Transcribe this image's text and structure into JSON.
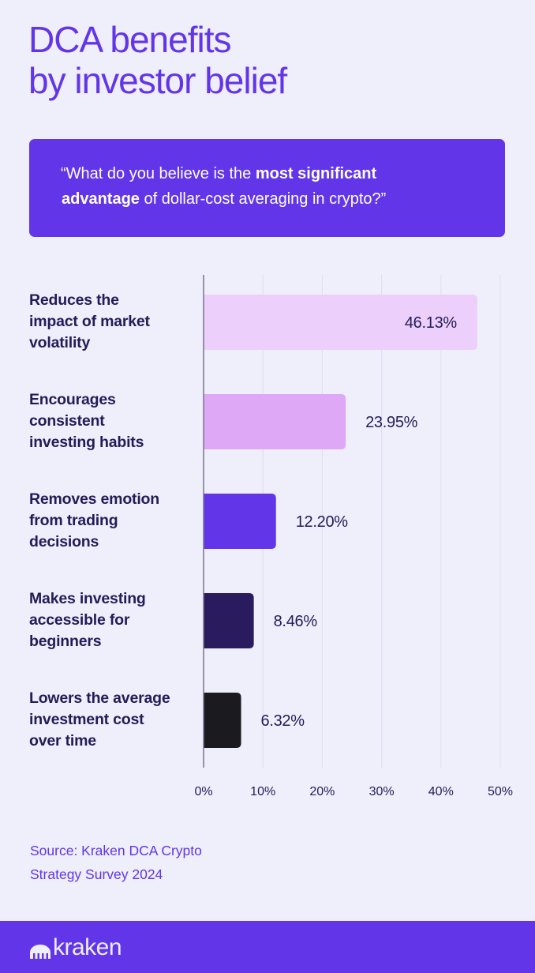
{
  "title_line1": "DCA benefits",
  "title_line2": "by investor belief",
  "question": {
    "open_quote": "“",
    "part1": "What do you believe is the ",
    "bold1": "most significant",
    "bold2": "advantage",
    "part2": " of dollar-cost averaging in crypto?”"
  },
  "chart_data": {
    "type": "bar",
    "orientation": "horizontal",
    "title": "DCA benefits by investor belief",
    "xlabel": "",
    "ylabel": "",
    "xlim": [
      0,
      50
    ],
    "grid": true,
    "categories": [
      "Reduces the impact of market volatility",
      "Encourages consistent investing habits",
      "Removes emotion from trading decisions",
      "Makes investing accessible for beginners",
      "Lowers the average investment cost over time"
    ],
    "category_lines": [
      [
        "Reduces the",
        "impact of market",
        "volatility"
      ],
      [
        "Encourages",
        "consistent",
        "investing habits"
      ],
      [
        "Removes emotion",
        "from trading",
        "decisions"
      ],
      [
        "Makes investing",
        "accessible for",
        "beginners"
      ],
      [
        "Lowers the average",
        "investment cost",
        "over time"
      ]
    ],
    "values": [
      46.13,
      23.95,
      12.2,
      8.46,
      6.32
    ],
    "value_labels": [
      "46.13%",
      "23.95%",
      "12.20%",
      "8.46%",
      "6.32%"
    ],
    "bar_colors": [
      "#eccffa",
      "#dfa8f6",
      "#6236e8",
      "#2a1b5e",
      "#1b1b1f"
    ],
    "x_ticks": [
      0,
      10,
      20,
      30,
      40,
      50
    ],
    "x_tick_labels": [
      "0%",
      "10%",
      "20%",
      "30%",
      "40%",
      "50%"
    ]
  },
  "source_line1": "Source: Kraken DCA Crypto",
  "source_line2": "Strategy Survey 2024",
  "footer": {
    "logo_text": "kraken"
  },
  "colors": {
    "brand": "#6236e8",
    "background": "#efeefb",
    "text_dark": "#241b57"
  }
}
